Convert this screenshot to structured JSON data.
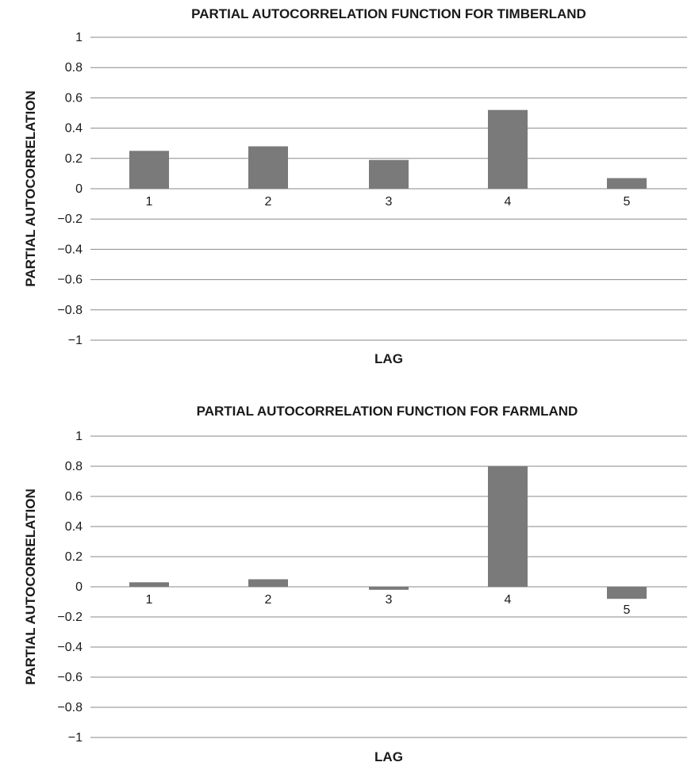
{
  "chart_data": [
    {
      "type": "bar",
      "title": "PARTIAL AUTOCORRELATION FUNCTION FOR TIMBERLAND",
      "xlabel": "LAG",
      "ylabel": "PARTIAL AUTOCORRELATION",
      "categories": [
        "1",
        "2",
        "3",
        "4",
        "5"
      ],
      "values": [
        0.25,
        0.28,
        0.19,
        0.52,
        0.07
      ],
      "ylim": [
        -1,
        1
      ],
      "yticks": [
        "1",
        "0.8",
        "0.6",
        "0.4",
        "0.2",
        "0",
        "−0.2",
        "−0.4",
        "−0.6",
        "−0.8",
        "−1"
      ],
      "grid": true,
      "bar_color": "#7a7a7a"
    },
    {
      "type": "bar",
      "title": "PARTIAL AUTOCORRELATION FUNCTION FOR FARMLAND",
      "xlabel": "LAG",
      "ylabel": "PARTIAL AUTOCORRELATION",
      "categories": [
        "1",
        "2",
        "3",
        "4",
        "5"
      ],
      "values": [
        0.03,
        0.05,
        -0.02,
        0.8,
        -0.08
      ],
      "ylim": [
        -1,
        1
      ],
      "yticks": [
        "1",
        "0.8",
        "0.6",
        "0.4",
        "0.2",
        "0",
        "−0.2",
        "−0.4",
        "−0.6",
        "−0.8",
        "−1"
      ],
      "grid": true,
      "bar_color": "#7a7a7a"
    }
  ]
}
